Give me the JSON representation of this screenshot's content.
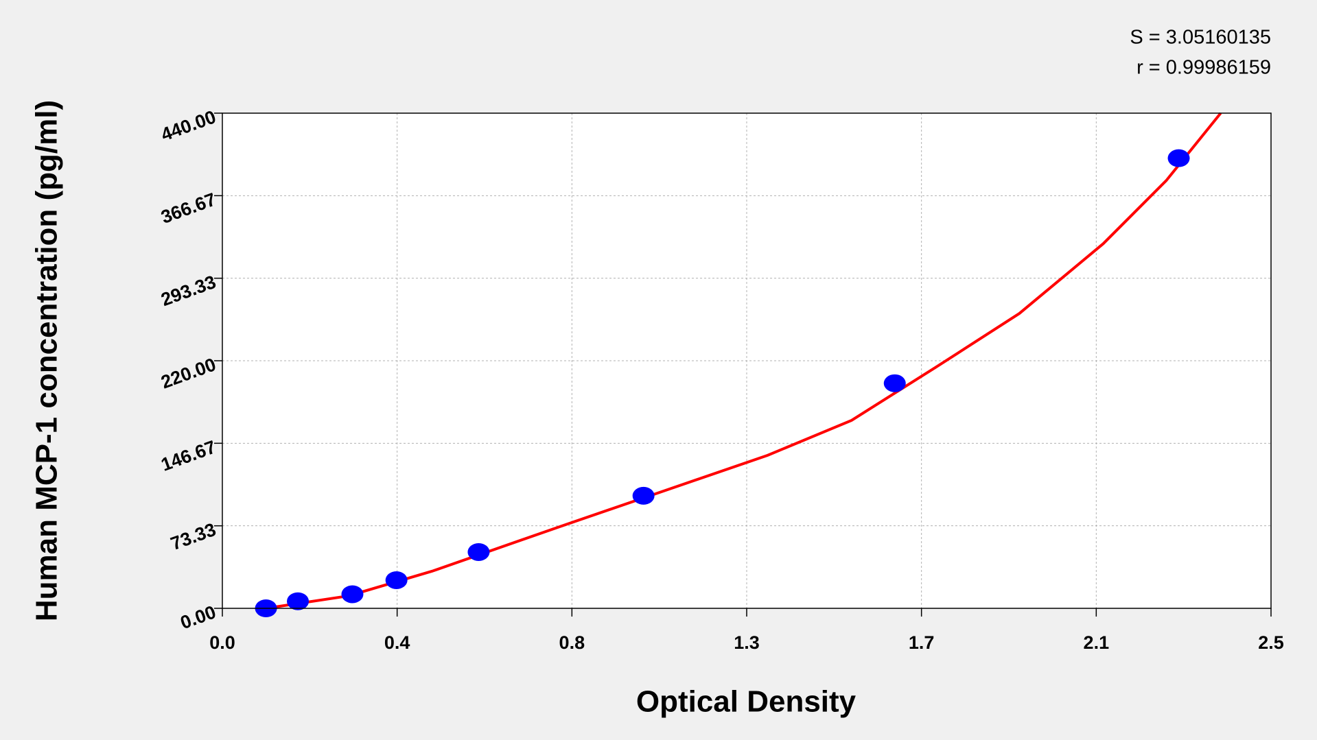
{
  "chart_data": {
    "type": "scatter",
    "x_label": "Optical Density",
    "y_label": "Human MCP-1 concentration (pg/ml)",
    "annotations": [
      "S = 3.05160135",
      "r = 0.99986159"
    ],
    "xlim": [
      0,
      2.5
    ],
    "xticks": [
      {
        "value": 0,
        "label": "0.0"
      },
      {
        "value": 0.41667,
        "label": "0.4"
      },
      {
        "value": 0.83333,
        "label": "0.8"
      },
      {
        "value": 1.25,
        "label": "1.3"
      },
      {
        "value": 1.66667,
        "label": "1.7"
      },
      {
        "value": 2.08333,
        "label": "2.1"
      },
      2.5
    ],
    "ylim": [
      0,
      440
    ],
    "yticks": [
      {
        "value": 0,
        "label": "0.00"
      },
      73.33,
      146.67,
      {
        "value": 220,
        "label": "220.00"
      },
      293.33,
      366.67,
      {
        "value": 440,
        "label": "440.00"
      }
    ],
    "grid": true,
    "series": [
      {
        "type": "scatter",
        "color": "#0000ff",
        "x": [
          0.104,
          0.18,
          0.31,
          0.415,
          0.611,
          1.004,
          1.603,
          2.28
        ],
        "values": [
          0,
          6.25,
          12.5,
          25,
          50,
          100,
          200,
          400
        ]
      },
      {
        "type": "line",
        "color": "#ff0000",
        "x": [
          0.104,
          0.3,
          0.5,
          0.8,
          1.05,
          1.3,
          1.5,
          1.7,
          1.9,
          2.1,
          2.25,
          2.38
        ],
        "values": [
          0,
          11,
          33,
          72,
          104,
          136,
          167,
          214,
          262,
          324,
          380,
          440
        ]
      }
    ]
  }
}
